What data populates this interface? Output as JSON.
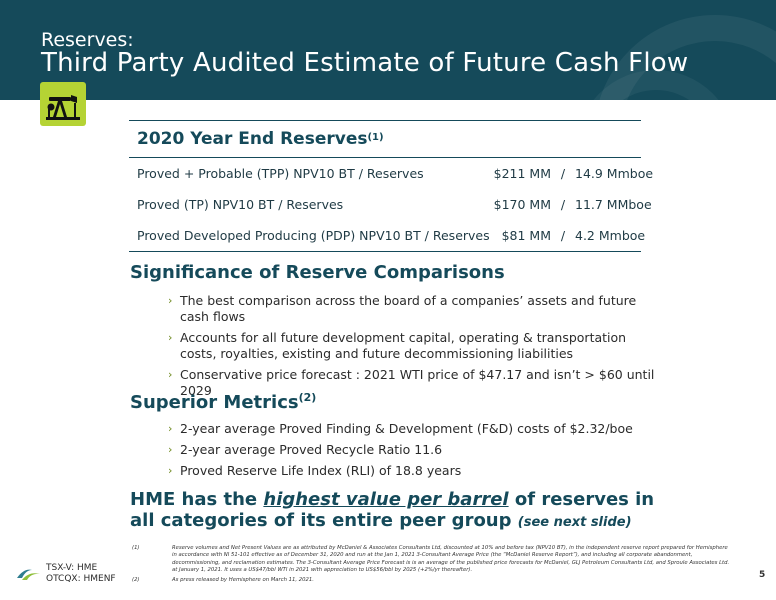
{
  "header": {
    "subtitle": "Reserves:",
    "title": "Third Party Audited Estimate of Future Cash Flow"
  },
  "icon": {
    "name": "oil-pump-jack-icon",
    "bg_color": "#b5d334"
  },
  "reserves": {
    "heading": "2020 Year End Reserves",
    "heading_note": "(1)",
    "rows": [
      {
        "label": "Proved + Probable (TPP) NPV10 BT / Reserves",
        "npv": "$211 MM",
        "sep": "/",
        "volume": "14.9 Mmboe"
      },
      {
        "label": "Proved (TP) NPV10 BT / Reserves",
        "npv": "$170 MM",
        "sep": "/",
        "volume": "11.7 MMboe"
      },
      {
        "label": "Proved Developed Producing (PDP) NPV10 BT / Reserves",
        "npv": "$81 MM",
        "sep": "/",
        "volume": "4.2 Mmboe"
      }
    ]
  },
  "significance": {
    "title": "Significance of Reserve Comparisons",
    "bullets": [
      "The best comparison across the board of a companies’ assets and future cash flows",
      "Accounts for all future development capital, operating & transportation costs, royalties, existing and future decommissioning liabilities",
      "Conservative price forecast : 2021 WTI price of $47.17 and isn’t > $60 until 2029"
    ]
  },
  "metrics": {
    "title": "Superior Metrics",
    "title_note": "(2)",
    "bullets": [
      "2-year average Proved Finding & Development (F&D) costs of $2.32/boe",
      "2-year average Proved Recycle Ratio 11.6",
      "Proved Reserve Life Index (RLI) of 18.8 years"
    ]
  },
  "conclusion": {
    "pre": "HME has the ",
    "emphasis": "highest value per barrel",
    "post": " of reserves in all categories of its entire peer group ",
    "small": "(see next slide)"
  },
  "footer": {
    "ticker1": "TSX-V: HME",
    "ticker2": "OTCQX: HMENF",
    "page": "5",
    "notes": [
      {
        "num": "(1)",
        "text": "Reserve volumes and Net Present Values are as attributed by McDaniel & Associates Consultants Ltd, discounted at 10% and before tax (NPV10 BT), in the independent reserve report prepared for Hemisphere in accordance with NI 51-101 effective as of December 31, 2020 and run at the Jan 1, 2021 3-Consultant Average Price (the “McDaniel Reserve Report”), and including all corporate abandonment, decommissioning, and reclamation estimates. The 3-Consultant Average Price Forecast is is an average of the published price forecasts for McDaniel, GLJ Petroleum Consultants Ltd, and Sproule Associates Ltd. at January 1, 2021. It uses a US$47/bbl WTI in 2021 with appreciation to US$56/bbl by 2025 (+2%/yr thereafter)."
      },
      {
        "num": "(2)",
        "text": "As press released by Hemisphere on March 11, 2021."
      }
    ]
  },
  "colors": {
    "brand": "#154a5a",
    "accent": "#b5d334",
    "chevron": "#6e8a1f"
  }
}
